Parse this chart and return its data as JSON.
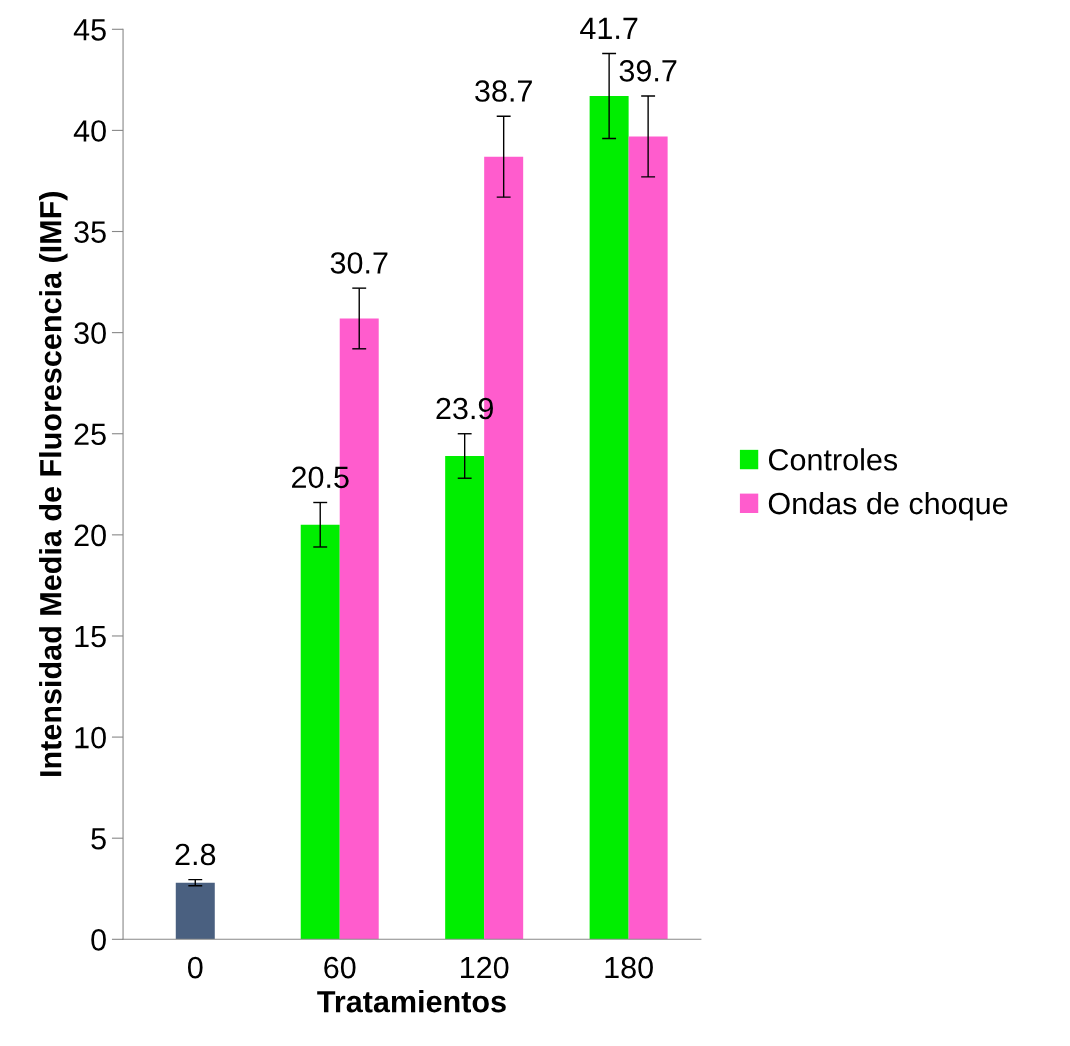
{
  "chart_data": {
    "type": "bar",
    "xlabel": "Tratamientos",
    "ylabel": "Intensidad Media de Fluorescencia (IMF)",
    "categories": [
      "0",
      "60",
      "120",
      "180"
    ],
    "series": [
      {
        "color": "#4a6080",
        "values": [
          2.8,
          null,
          null,
          null
        ],
        "errors": [
          0.15,
          null,
          null,
          null
        ]
      },
      {
        "name": "Controles",
        "color": "#00ee00",
        "values": [
          null,
          20.5,
          23.9,
          41.7
        ],
        "errors": [
          null,
          1.1,
          1.1,
          2.1
        ]
      },
      {
        "name": "Ondas de choque",
        "color": "#ff5ccd",
        "values": [
          null,
          30.7,
          38.7,
          39.7
        ],
        "errors": [
          null,
          1.5,
          2.0,
          2.0
        ]
      }
    ],
    "ylim": [
      0,
      45
    ],
    "yticks": [
      0,
      5,
      10,
      15,
      20,
      25,
      30,
      35,
      40,
      45
    ],
    "data_labels": true,
    "legend": "right",
    "grid": false
  }
}
